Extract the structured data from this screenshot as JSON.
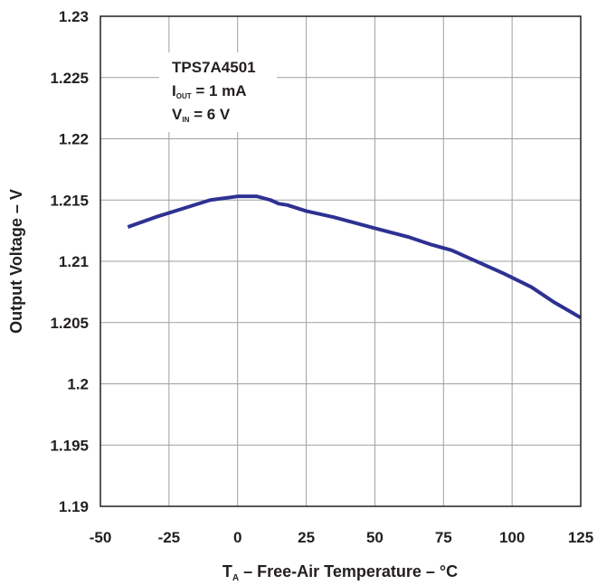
{
  "chart_data": {
    "type": "line",
    "x_ticks": [
      "-50",
      "-25",
      "0",
      "25",
      "50",
      "75",
      "100",
      "125"
    ],
    "y_ticks": [
      "1.19",
      "1.195",
      "1.2",
      "1.205",
      "1.21",
      "1.215",
      "1.22",
      "1.225",
      "1.23"
    ],
    "xlim": [
      -50,
      125
    ],
    "ylim": [
      1.19,
      1.23
    ],
    "grid": true,
    "xlabel": {
      "main": "T",
      "sub": "A",
      "rest": " – Free-Air Temperature – °C"
    },
    "ylabel": "Output Voltage – V",
    "annotation": {
      "line1": "TPS7A4501",
      "line2": {
        "main": "I",
        "sub": "OUT",
        "rest": " = 1 mA"
      },
      "line3": {
        "main": "V",
        "sub": "IN",
        "rest": " = 6 V"
      }
    },
    "series": [
      {
        "color": "#2e3192",
        "x": [
          -40,
          -30,
          -20,
          -10,
          0,
          7,
          12,
          15,
          18,
          25,
          35,
          50,
          62,
          70,
          78,
          85,
          97,
          107,
          115,
          125
        ],
        "y": [
          1.2128,
          1.2136,
          1.2143,
          1.215,
          1.2153,
          1.2153,
          1.215,
          1.2147,
          1.2146,
          1.2141,
          1.2136,
          1.2127,
          1.212,
          1.2114,
          1.2109,
          1.2102,
          1.209,
          1.2079,
          1.2067,
          1.2054
        ]
      }
    ]
  }
}
